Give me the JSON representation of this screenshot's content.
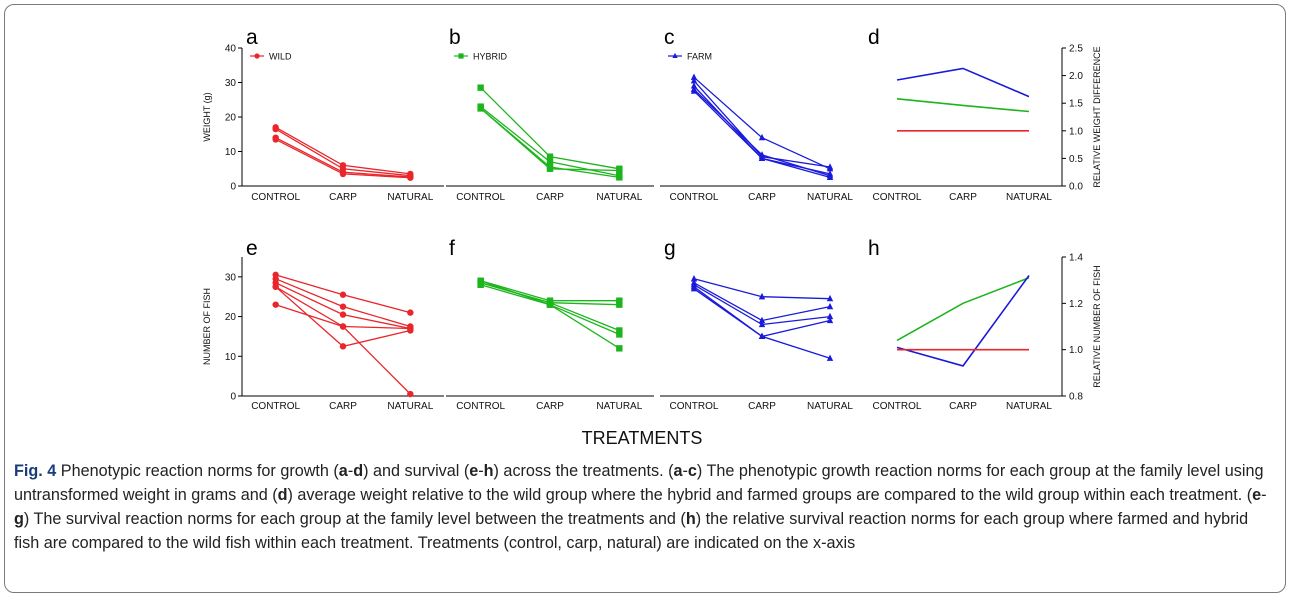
{
  "figure": {
    "xlabel_shared": "TREATMENTS",
    "panel_letters": [
      "a",
      "b",
      "c",
      "d",
      "e",
      "f",
      "g",
      "h"
    ],
    "categories": [
      "CONTROL",
      "CARP",
      "NATURAL"
    ],
    "colors": {
      "wild": "#e8262b",
      "hybrid": "#1db51d",
      "farm": "#1a1adb"
    }
  },
  "caption": {
    "label": "Fig. 4",
    "parts": [
      {
        "t": " Phenotypic reaction norms for growth ("
      },
      {
        "b": "a"
      },
      {
        "t": "-"
      },
      {
        "b": "d"
      },
      {
        "t": ") and survival ("
      },
      {
        "b": "e"
      },
      {
        "t": "-"
      },
      {
        "b": "h"
      },
      {
        "t": ") across the treatments. ("
      },
      {
        "b": "a"
      },
      {
        "t": "-"
      },
      {
        "b": "c"
      },
      {
        "t": ") The phenotypic growth reaction norms for each group at the family level using untransformed weight in grams and ("
      },
      {
        "b": "d"
      },
      {
        "t": ") average weight relative to the wild group where the hybrid and farmed groups are compared to the wild group within each treatment. ("
      },
      {
        "b": "e"
      },
      {
        "t": "-"
      },
      {
        "b": "g"
      },
      {
        "t": ") The survival reaction norms for each group at the family level between the treatments and ("
      },
      {
        "b": "h"
      },
      {
        "t": ") the relative survival reaction norms for each group where farmed and hybrid fish are compared to the wild fish within each treatment. Treatments (control, carp, natural) are indicated on the x-axis"
      }
    ]
  },
  "chart_data": [
    {
      "panel": "a",
      "type": "line",
      "marker": "circle",
      "color": "#e8262b",
      "legend": "WILD",
      "ylabel": "WEIGHT (g)",
      "ylim": [
        0,
        40
      ],
      "yticks": [
        0,
        10,
        20,
        30,
        40
      ],
      "categories": [
        "CONTROL",
        "CARP",
        "NATURAL"
      ],
      "series": [
        {
          "values": [
            17,
            6,
            3.5
          ]
        },
        {
          "values": [
            16.5,
            5,
            3
          ]
        },
        {
          "values": [
            14,
            4,
            2.6
          ]
        },
        {
          "values": [
            13.5,
            3.5,
            2.4
          ]
        }
      ]
    },
    {
      "panel": "b",
      "type": "line",
      "marker": "square",
      "color": "#1db51d",
      "legend": "HYBRID",
      "ylim": [
        0,
        40
      ],
      "categories": [
        "CONTROL",
        "CARP",
        "NATURAL"
      ],
      "series": [
        {
          "values": [
            28.5,
            8.5,
            5
          ]
        },
        {
          "values": [
            23,
            7,
            3
          ]
        },
        {
          "values": [
            22.5,
            5.5,
            2.5
          ]
        },
        {
          "values": [
            22.5,
            5,
            4.5
          ]
        }
      ]
    },
    {
      "panel": "c",
      "type": "line",
      "marker": "triangle",
      "color": "#1a1adb",
      "legend": "FARM",
      "ylim": [
        0,
        40
      ],
      "categories": [
        "CONTROL",
        "CARP",
        "NATURAL"
      ],
      "series": [
        {
          "values": [
            31.5,
            14,
            5
          ]
        },
        {
          "values": [
            30.5,
            8.5,
            5.5
          ]
        },
        {
          "values": [
            29,
            8,
            3.5
          ]
        },
        {
          "values": [
            28,
            9,
            3
          ]
        },
        {
          "values": [
            27.5,
            8,
            2.5
          ]
        }
      ]
    },
    {
      "panel": "d",
      "type": "line",
      "ylabel": "RELATIVE WEIGHT DIFFERENCE",
      "ylim": [
        0,
        2.5
      ],
      "yticks": [
        0.0,
        0.5,
        1.0,
        1.5,
        2.0,
        2.5
      ],
      "axis_side": "right",
      "categories": [
        "CONTROL",
        "CARP",
        "NATURAL"
      ],
      "series": [
        {
          "color": "#1a1adb",
          "values": [
            1.92,
            2.13,
            1.62
          ]
        },
        {
          "color": "#1db51d",
          "values": [
            1.58,
            1.46,
            1.35
          ]
        },
        {
          "color": "#e8262b",
          "values": [
            1.0,
            1.0,
            1.0
          ]
        }
      ]
    },
    {
      "panel": "e",
      "type": "line",
      "marker": "circle",
      "color": "#e8262b",
      "ylabel": "NUMBER OF FISH",
      "ylim": [
        0,
        35
      ],
      "yticks": [
        0,
        10,
        20,
        30
      ],
      "categories": [
        "CONTROL",
        "CARP",
        "NATURAL"
      ],
      "series": [
        {
          "values": [
            30.5,
            25.5,
            21
          ]
        },
        {
          "values": [
            29.5,
            22.5,
            17.5
          ]
        },
        {
          "values": [
            28.5,
            20.5,
            17
          ]
        },
        {
          "values": [
            27.5,
            12.5,
            16.5
          ]
        },
        {
          "values": [
            23,
            17.5,
            17
          ]
        },
        {
          "values": [
            27.5,
            17.5,
            0.5
          ]
        }
      ]
    },
    {
      "panel": "f",
      "type": "line",
      "marker": "square",
      "color": "#1db51d",
      "ylim": [
        0,
        35
      ],
      "categories": [
        "CONTROL",
        "CARP",
        "NATURAL"
      ],
      "series": [
        {
          "values": [
            29,
            24,
            24
          ]
        },
        {
          "values": [
            28.5,
            23.5,
            23
          ]
        },
        {
          "values": [
            28.5,
            23.5,
            16.5
          ]
        },
        {
          "values": [
            28,
            23,
            15.5
          ]
        },
        {
          "values": [
            29,
            23,
            12
          ]
        }
      ]
    },
    {
      "panel": "g",
      "type": "line",
      "marker": "triangle",
      "color": "#1a1adb",
      "ylim": [
        0,
        35
      ],
      "categories": [
        "CONTROL",
        "CARP",
        "NATURAL"
      ],
      "series": [
        {
          "values": [
            29.5,
            25,
            24.5
          ]
        },
        {
          "values": [
            28.5,
            19,
            22.5
          ]
        },
        {
          "values": [
            28,
            18,
            20
          ]
        },
        {
          "values": [
            27.5,
            15,
            19
          ]
        },
        {
          "values": [
            27,
            15,
            9.5
          ]
        }
      ]
    },
    {
      "panel": "h",
      "type": "line",
      "ylabel": "RELATIVE NUMBER OF FISH",
      "ylim": [
        0.8,
        1.4
      ],
      "yticks": [
        0.8,
        1.0,
        1.2,
        1.4
      ],
      "axis_side": "right",
      "categories": [
        "CONTROL",
        "CARP",
        "NATURAL"
      ],
      "series": [
        {
          "color": "#1db51d",
          "values": [
            1.04,
            1.2,
            1.31
          ]
        },
        {
          "color": "#1a1adb",
          "values": [
            1.01,
            0.93,
            1.32
          ]
        },
        {
          "color": "#e8262b",
          "values": [
            1.0,
            1.0,
            1.0
          ]
        }
      ]
    }
  ]
}
